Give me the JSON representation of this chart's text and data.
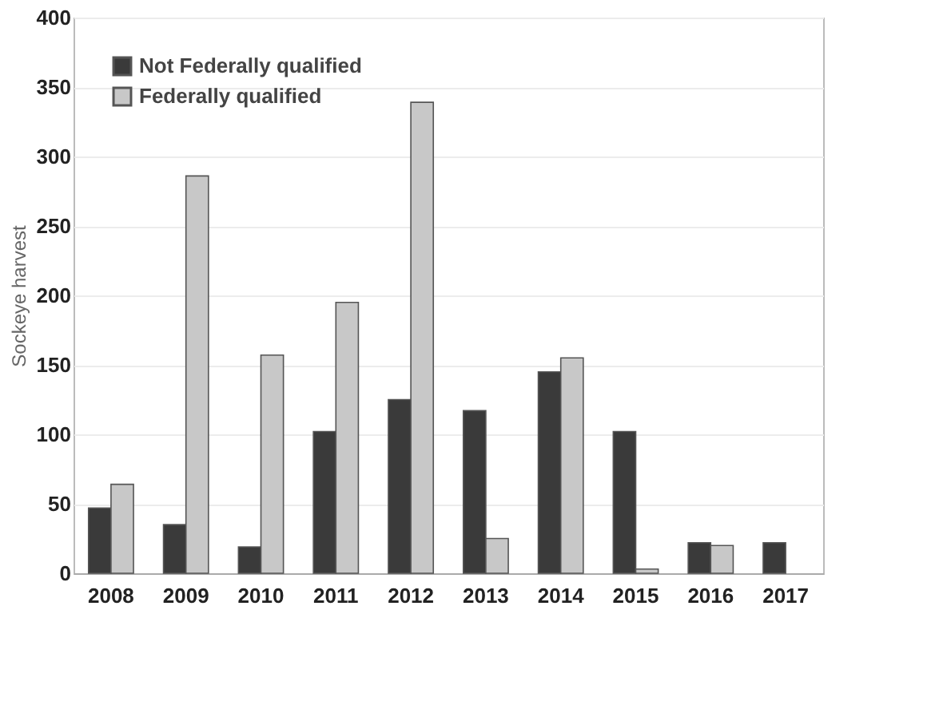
{
  "chart_data": {
    "type": "bar",
    "ylabel": "Sockeye harvest",
    "categories": [
      "2008",
      "2009",
      "2010",
      "2011",
      "2012",
      "2013",
      "2014",
      "2015",
      "2016",
      "2017"
    ],
    "series": [
      {
        "name": "Not Federally qualified",
        "color": "#3a3a3a",
        "values": [
          47,
          35,
          19,
          102,
          125,
          117,
          145,
          102,
          22,
          22
        ]
      },
      {
        "name": "Federally qualified",
        "color": "#c8c8c8",
        "values": [
          64,
          286,
          157,
          195,
          339,
          25,
          155,
          3,
          20,
          null
        ]
      }
    ],
    "ylim": [
      0,
      400
    ],
    "yticks": [
      0,
      50,
      100,
      150,
      200,
      250,
      300,
      350,
      400
    ],
    "grid": "y",
    "legend": "top left"
  }
}
